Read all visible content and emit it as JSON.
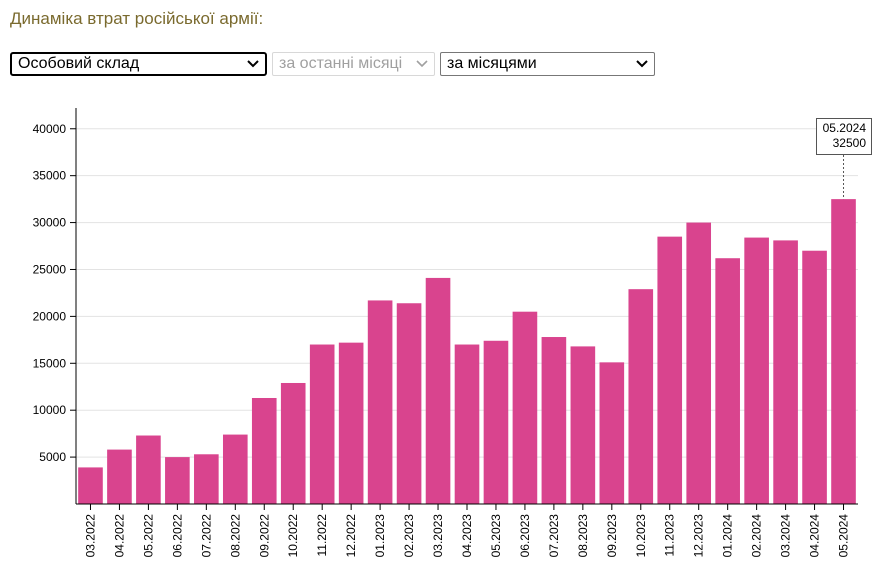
{
  "page_title": "Динаміка втрат російської армії:",
  "controls": {
    "category": {
      "value": "Особовий склад"
    },
    "period": {
      "value": "за останні місяці"
    },
    "grouping": {
      "value": "за місяцями"
    }
  },
  "tooltip": {
    "label": "05.2024",
    "value": "32500"
  },
  "colors": {
    "bar": "#d9448e",
    "grid": "#e3e3e3",
    "axis": "#000000"
  },
  "chart_data": {
    "type": "bar",
    "title": "",
    "xlabel": "",
    "ylabel": "",
    "ylim": [
      0,
      42000
    ],
    "yticks": [
      5000,
      10000,
      15000,
      20000,
      25000,
      30000,
      35000,
      40000
    ],
    "categories": [
      "03.2022",
      "04.2022",
      "05.2022",
      "06.2022",
      "07.2022",
      "08.2022",
      "09.2022",
      "10.2022",
      "11.2022",
      "12.2022",
      "01.2023",
      "02.2023",
      "03.2023",
      "04.2023",
      "05.2023",
      "06.2023",
      "07.2023",
      "08.2023",
      "09.2023",
      "10.2023",
      "11.2023",
      "12.2023",
      "01.2024",
      "02.2024",
      "03.2024",
      "04.2024",
      "05.2024"
    ],
    "values": [
      3900,
      5800,
      7300,
      5000,
      5300,
      7400,
      11300,
      12900,
      17000,
      17200,
      21700,
      21400,
      24100,
      17000,
      17400,
      20500,
      17800,
      16800,
      15100,
      22900,
      28500,
      30000,
      26200,
      28400,
      28100,
      27000,
      32500
    ]
  }
}
